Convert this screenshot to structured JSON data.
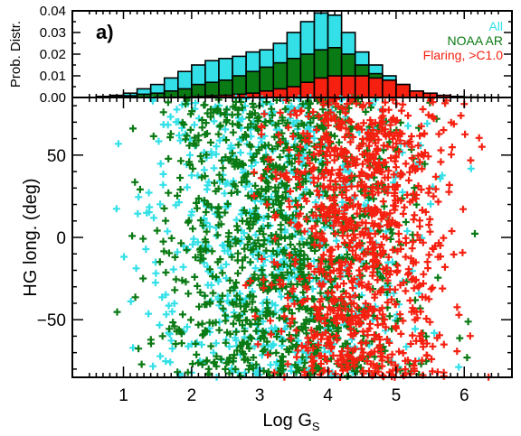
{
  "chart_data": [
    {
      "type": "bar",
      "panel_label": "a)",
      "ylabel": "Prob. Distr.",
      "ylim": [
        0,
        0.04
      ],
      "yticks": [
        "0.00",
        "0.01",
        "0.02",
        "0.03",
        "0.04"
      ],
      "bin_centers": [
        0.7,
        0.9,
        1.1,
        1.3,
        1.5,
        1.7,
        1.9,
        2.1,
        2.3,
        2.5,
        2.7,
        2.9,
        3.1,
        3.3,
        3.5,
        3.7,
        3.9,
        4.1,
        4.3,
        4.5,
        4.7,
        4.9,
        5.1,
        5.3,
        5.5,
        5.7,
        5.9,
        6.1,
        6.3
      ],
      "series": [
        {
          "name": "All",
          "color": "#33e0e8",
          "values": [
            0.0005,
            0.001,
            0.002,
            0.004,
            0.006,
            0.009,
            0.012,
            0.015,
            0.017,
            0.018,
            0.019,
            0.021,
            0.022,
            0.025,
            0.03,
            0.035,
            0.039,
            0.038,
            0.03,
            0.021,
            0.015,
            0.01,
            0.006,
            0.003,
            0.0015,
            0.0008,
            0.0003,
            0.0001,
            0.0001
          ]
        },
        {
          "name": "NOAA AR",
          "color": "#0a7a14",
          "values": [
            0.0002,
            0.0004,
            0.0008,
            0.0015,
            0.002,
            0.003,
            0.004,
            0.006,
            0.007,
            0.008,
            0.01,
            0.012,
            0.014,
            0.016,
            0.018,
            0.02,
            0.022,
            0.023,
            0.02,
            0.015,
            0.011,
            0.008,
            0.005,
            0.003,
            0.0015,
            0.0008,
            0.0003,
            0.0001,
            0.0001
          ]
        },
        {
          "name": "Flaring, >C1.0",
          "color": "#f52010",
          "values": [
            0,
            0,
            0,
            0,
            0,
            0,
            0.0002,
            0.0004,
            0.0008,
            0.001,
            0.0015,
            0.002,
            0.003,
            0.004,
            0.005,
            0.007,
            0.009,
            0.01,
            0.01,
            0.01,
            0.009,
            0.008,
            0.006,
            0.003,
            0.002,
            0.001,
            0.0005,
            0.0002,
            0.0001
          ]
        }
      ]
    },
    {
      "type": "scatter",
      "xlabel": "Log G",
      "xlabel_sub": "S",
      "ylabel": "HG long. (deg)",
      "xlim": [
        0.25,
        6.7
      ],
      "ylim": [
        -85,
        85
      ],
      "xticks": [
        "1",
        "2",
        "3",
        "4",
        "5",
        "6"
      ],
      "yticks": [
        "50",
        "0",
        "−50"
      ],
      "marker": "+",
      "series": [
        {
          "name": "All",
          "color": "#33e0e8",
          "x_range": [
            0.7,
            6.3
          ],
          "x_mean": 3.2,
          "x_sd": 1.0,
          "y_range": [
            -85,
            85
          ],
          "n_points": 700
        },
        {
          "name": "NOAA AR",
          "color": "#0a7a14",
          "x_range": [
            0.7,
            6.3
          ],
          "x_mean": 3.4,
          "x_sd": 0.9,
          "y_range": [
            -85,
            85
          ],
          "n_points": 1100
        },
        {
          "name": "Flaring, >C1.0",
          "color": "#f52010",
          "x_range": [
            2.0,
            6.6
          ],
          "x_mean": 4.5,
          "x_sd": 0.65,
          "y_range": [
            -85,
            85
          ],
          "n_points": 1000
        }
      ]
    }
  ]
}
